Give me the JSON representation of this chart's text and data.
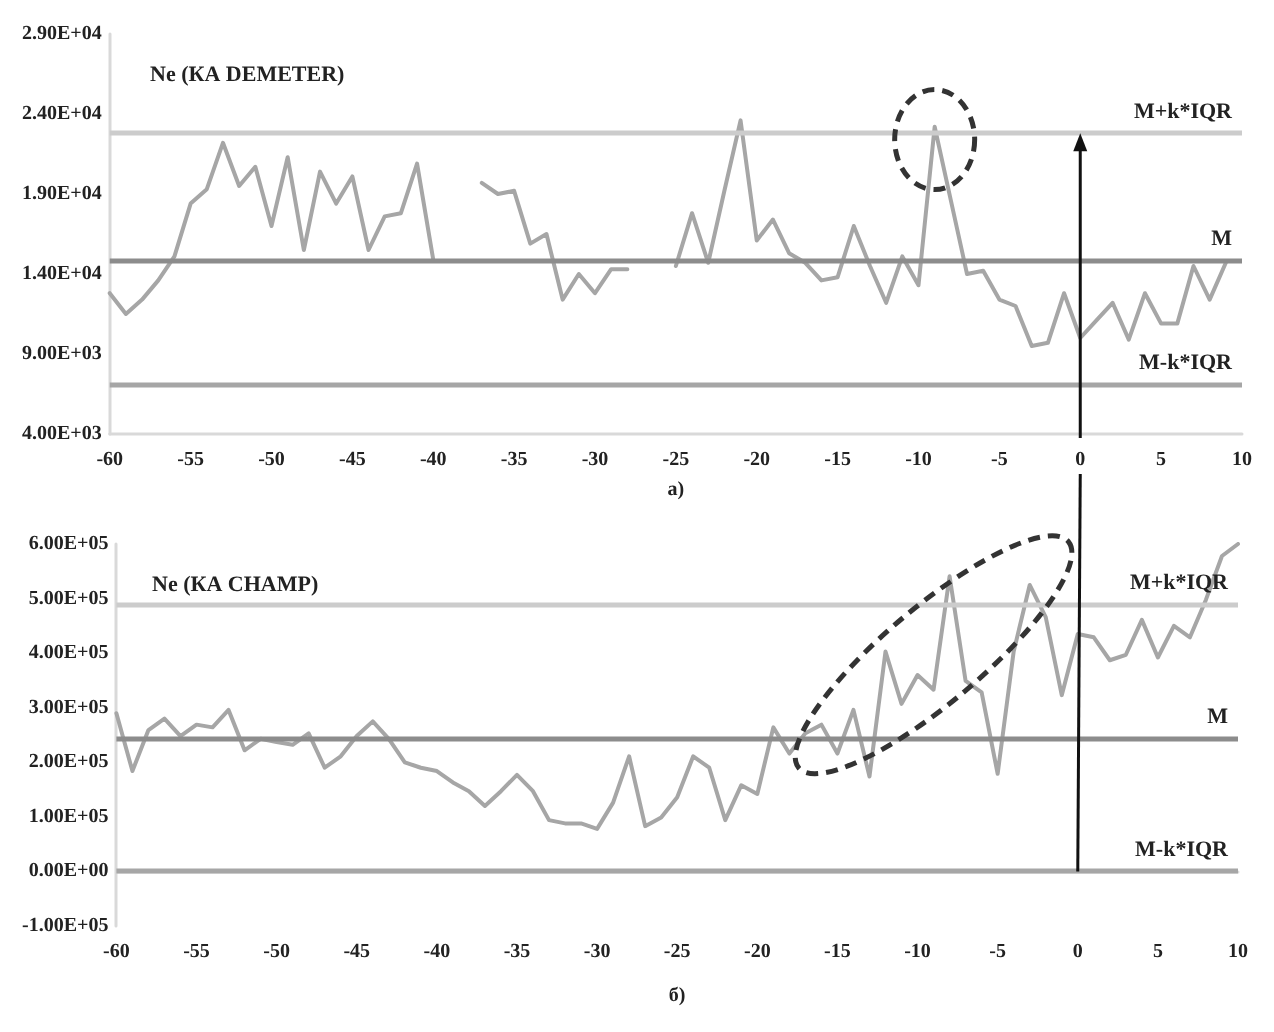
{
  "chart_data": [
    {
      "type": "line",
      "title": "Ne (КА DEMETER)",
      "xlabel": "a)",
      "x": [
        -60,
        -59,
        -58,
        -57,
        -56,
        -55,
        -54,
        -53,
        -52,
        -51,
        -50,
        -49,
        -48,
        -47,
        -46,
        -45,
        -44,
        -43,
        -42,
        -41,
        -40,
        -39,
        -38,
        -37,
        -36,
        -35,
        -34,
        -33,
        -32,
        -31,
        -30,
        -29,
        -28,
        -27,
        -26,
        -25,
        -24,
        -23,
        -22,
        -21,
        -20,
        -19,
        -18,
        -17,
        -16,
        -15,
        -14,
        -13,
        -12,
        -11,
        -10,
        -9,
        -8,
        -7,
        -6,
        -5,
        -4,
        -3,
        -2,
        -1,
        0,
        1,
        2,
        3,
        4,
        5,
        6,
        7,
        8,
        9
      ],
      "series": [
        {
          "color": "#a6a6a6",
          "values": [
            12800,
            11500,
            12400,
            13600,
            15100,
            18400,
            19300,
            22200,
            19500,
            20700,
            17000,
            21300,
            15500,
            20400,
            18400,
            20100,
            15500,
            17600,
            17800,
            20900,
            14900,
            null,
            null,
            19700,
            19000,
            19200,
            15900,
            16500,
            12400,
            14000,
            12800,
            14300,
            14300,
            null,
            null,
            14500,
            17800,
            14700,
            19200,
            23600,
            16100,
            17400,
            15300,
            14700,
            13600,
            13800,
            17000,
            14500,
            12200,
            15100,
            13300,
            23200,
            18600,
            14000,
            14200,
            12400,
            12000,
            9500,
            9700,
            12800,
            10000,
            11100,
            12200,
            9900,
            12800,
            10900,
            10900,
            14500,
            12400,
            14700
          ]
        }
      ],
      "xlim": [
        -60,
        10
      ],
      "xticks": [
        -60,
        -55,
        -50,
        -45,
        -40,
        -35,
        -30,
        -25,
        -20,
        -15,
        -10,
        -5,
        0,
        5,
        10
      ],
      "ylim": [
        4000,
        29000
      ],
      "yticks": [
        {
          "value": 4000,
          "label": "4.00E+03"
        },
        {
          "value": 9000,
          "label": "9.00E+03"
        },
        {
          "value": 14000,
          "label": "1.40E+04"
        },
        {
          "value": 19000,
          "label": "1.90E+04"
        },
        {
          "value": 24000,
          "label": "2.40E+04"
        },
        {
          "value": 29000,
          "label": "2.90E+04"
        }
      ],
      "ref_lines": [
        {
          "axis": "y",
          "value": 22800,
          "label": "M+k*IQR",
          "color": "#cccccc"
        },
        {
          "axis": "y",
          "value": 14900,
          "label": "M",
          "color": "#8c8c8c"
        },
        {
          "axis": "y",
          "value": 7100,
          "label": "M-k*IQR",
          "color": "#a6a6a6"
        }
      ]
    },
    {
      "type": "line",
      "title": "Ne (КА CHAMP)",
      "xlabel": "б)",
      "x": [
        -60,
        -59,
        -58,
        -57,
        -56,
        -55,
        -54,
        -53,
        -52,
        -51,
        -50,
        -49,
        -48,
        -47,
        -46,
        -45,
        -44,
        -43,
        -42,
        -41,
        -40,
        -39,
        -38,
        -37,
        -36,
        -35,
        -34,
        -33,
        -32,
        -31,
        -30,
        -29,
        -28,
        -27,
        -26,
        -25,
        -24,
        -23,
        -22,
        -21,
        -20,
        -19,
        -18,
        -17,
        -16,
        -15,
        -14,
        -13,
        -12,
        -11,
        -10,
        -9,
        -8,
        -7,
        -6,
        -5,
        -4,
        -3,
        -2,
        -1,
        0,
        1,
        2,
        3,
        4,
        5,
        6,
        7,
        8,
        9,
        10
      ],
      "series": [
        {
          "color": "#a6a6a6",
          "values": [
            290000,
            184000,
            259000,
            280000,
            248000,
            269000,
            264000,
            296000,
            222000,
            243000,
            237000,
            232000,
            253000,
            190000,
            211000,
            248000,
            275000,
            243000,
            200000,
            190000,
            184000,
            163000,
            147000,
            120000,
            147000,
            177000,
            147000,
            94000,
            88000,
            88000,
            78000,
            126000,
            211000,
            83000,
            99000,
            136000,
            211000,
            190000,
            94000,
            158000,
            142000,
            264000,
            216000,
            253000,
            269000,
            216000,
            296000,
            174000,
            403000,
            307000,
            360000,
            333000,
            541000,
            349000,
            328000,
            179000,
            403000,
            525000,
            466000,
            323000,
            435000,
            429000,
            387000,
            397000,
            461000,
            392000,
            450000,
            429000,
            498000,
            578000,
            600000
          ]
        }
      ],
      "xlim": [
        -60,
        10
      ],
      "xticks": [
        -60,
        -55,
        -50,
        -45,
        -40,
        -35,
        -30,
        -25,
        -20,
        -15,
        -10,
        -5,
        0,
        5,
        10
      ],
      "ylim": [
        -100000,
        600000
      ],
      "yticks": [
        {
          "value": -100000,
          "label": "-1.00E+05"
        },
        {
          "value": 0,
          "label": "0.00E+00"
        },
        {
          "value": 100000,
          "label": "1.00E+05"
        },
        {
          "value": 200000,
          "label": "2.00E+05"
        },
        {
          "value": 300000,
          "label": "3.00E+05"
        },
        {
          "value": 400000,
          "label": "4.00E+05"
        },
        {
          "value": 500000,
          "label": "5.00E+05"
        },
        {
          "value": 600000,
          "label": "6.00E+05"
        }
      ],
      "ref_lines": [
        {
          "axis": "y",
          "value": 490000,
          "label": "M+k*IQR",
          "color": "#cccccc"
        },
        {
          "axis": "y",
          "value": 245000,
          "label": "M",
          "color": "#8c8c8c"
        },
        {
          "axis": "y",
          "value": 0,
          "label": "M-k*IQR",
          "color": "#a6a6a6"
        }
      ]
    }
  ]
}
